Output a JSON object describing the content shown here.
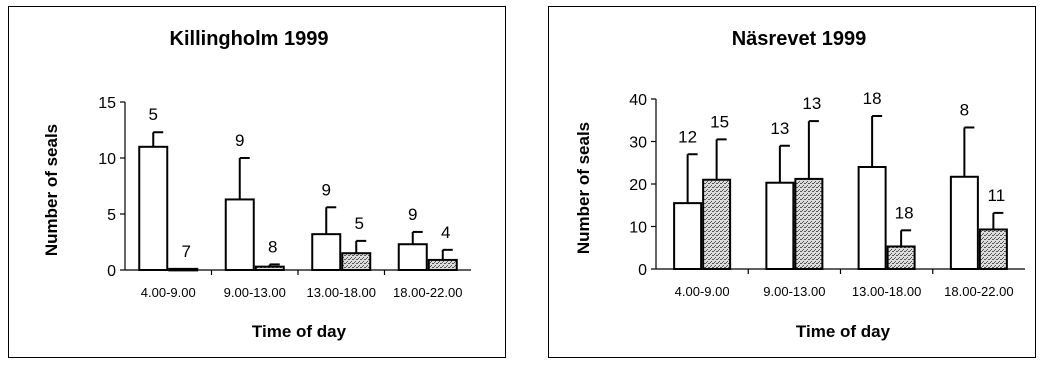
{
  "chart_data": [
    {
      "type": "bar",
      "title": "Killingholm 1999",
      "xlabel": "Time of day",
      "ylabel": "Number of seals",
      "ylim": [
        0,
        15
      ],
      "yticks": [
        0,
        5,
        10,
        15
      ],
      "categories": [
        "4.00-9.00",
        "9.00-13.00",
        "13.00-18.00",
        "18.00-22.00"
      ],
      "series": [
        {
          "style": "white",
          "values": [
            11,
            6.3,
            3.2,
            2.3
          ],
          "error": [
            1.3,
            3.7,
            2.4,
            1.1
          ],
          "labels": [
            "5",
            "9",
            "9",
            "9"
          ]
        },
        {
          "style": "stippled",
          "values": [
            0.1,
            0.3,
            1.5,
            0.9
          ],
          "error": [
            0,
            0.2,
            1.1,
            0.9
          ],
          "labels": [
            "7",
            "8",
            "5",
            "4"
          ]
        }
      ],
      "legend": "none"
    },
    {
      "type": "bar",
      "title": "Näsrevet 1999",
      "xlabel": "Time of day",
      "ylabel": "Number of seals",
      "ylim": [
        0,
        40
      ],
      "yticks": [
        0,
        10,
        20,
        30,
        40
      ],
      "categories": [
        "4.00-9.00",
        "9.00-13.00",
        "13.00-18.00",
        "18.00-22.00"
      ],
      "series": [
        {
          "style": "white",
          "values": [
            15.5,
            20.3,
            24,
            21.7
          ],
          "error": [
            11.5,
            8.7,
            12,
            11.6
          ],
          "labels": [
            "12",
            "13",
            "18",
            "8"
          ]
        },
        {
          "style": "stippled",
          "values": [
            21,
            21.2,
            5.3,
            9.3
          ],
          "error": [
            9.5,
            13.6,
            3.8,
            3.9
          ],
          "labels": [
            "15",
            "13",
            "18",
            "11"
          ]
        }
      ],
      "legend": "none"
    }
  ]
}
